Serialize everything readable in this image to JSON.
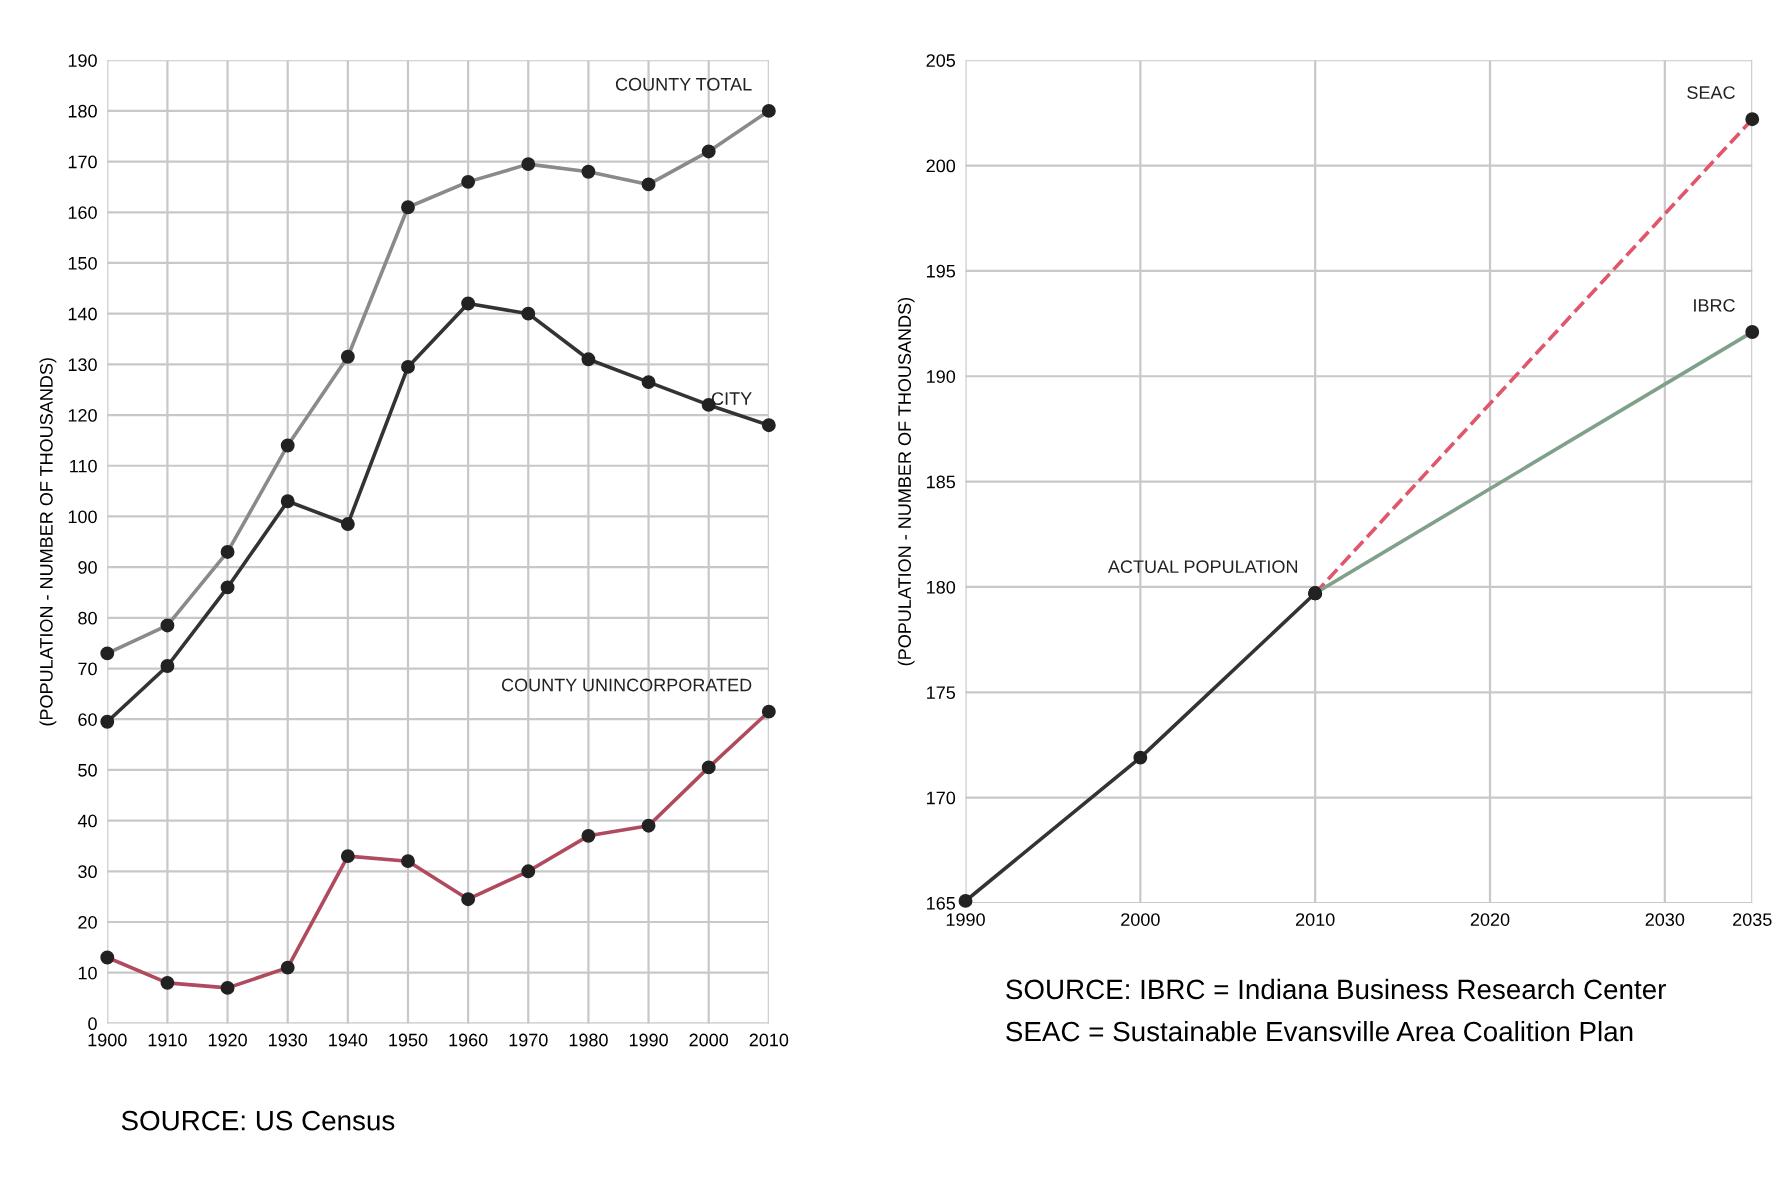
{
  "chart_data": [
    {
      "type": "line",
      "ylabel": "(POPULATION - NUMBER OF THOUSANDS)",
      "x": [
        1900,
        1910,
        1920,
        1930,
        1940,
        1950,
        1960,
        1970,
        1980,
        1990,
        2000,
        2010
      ],
      "xlim": [
        1900,
        2010
      ],
      "xticks": [
        1900,
        1910,
        1920,
        1930,
        1940,
        1950,
        1960,
        1970,
        1980,
        1990,
        2000,
        2010
      ],
      "ylim": [
        0,
        190
      ],
      "yticks": [
        0,
        10,
        20,
        30,
        40,
        50,
        60,
        70,
        80,
        90,
        100,
        110,
        120,
        130,
        140,
        150,
        160,
        170,
        180,
        190
      ],
      "grid": true,
      "marker": "circle",
      "legend": false,
      "series": [
        {
          "name": "COUNTY TOTAL",
          "color": "#8a8a8a",
          "values": [
            73,
            78.5,
            93,
            114,
            131.5,
            161,
            166,
            169.5,
            168,
            165.5,
            172,
            180
          ]
        },
        {
          "name": "CITY",
          "color": "#333333",
          "values": [
            59.5,
            70.5,
            86,
            103,
            98.5,
            129.5,
            142,
            140,
            131,
            126.5,
            122,
            118
          ]
        },
        {
          "name": "COUNTY UNINCORPORATED",
          "color": "#b04a5e",
          "values": [
            13,
            8,
            7,
            11,
            33,
            32,
            24.5,
            30,
            37,
            39,
            50.5,
            61.5
          ]
        }
      ],
      "annotations": [
        "SOURCE: US Census"
      ]
    },
    {
      "type": "line",
      "ylabel": "(POPULATION - NUMBER OF THOUSANDS)",
      "xlim": [
        1990,
        2035
      ],
      "xticks": [
        1990,
        2000,
        2010,
        2020,
        2030,
        2035
      ],
      "ylim": [
        165,
        205
      ],
      "yticks": [
        165,
        170,
        175,
        180,
        185,
        190,
        195,
        200,
        205
      ],
      "grid": true,
      "marker": "circle",
      "legend": false,
      "series": [
        {
          "name": "ACTUAL POPULATION",
          "color": "#333333",
          "x": [
            1990,
            2000,
            2010
          ],
          "values": [
            165.1,
            171.9,
            179.7
          ]
        },
        {
          "name": "SEAC",
          "color": "#e0566a",
          "line_style": "dashed",
          "x": [
            2010,
            2035
          ],
          "values": [
            179.7,
            202.2
          ]
        },
        {
          "name": "IBRC",
          "color": "#7fa08a",
          "x": [
            2010,
            2035
          ],
          "values": [
            179.7,
            192.1
          ]
        }
      ],
      "annotations": [
        "SOURCE: IBRC = Indiana Business Research Center",
        "SEAC = Sustainable Evansville Area Coalition Plan"
      ]
    }
  ]
}
